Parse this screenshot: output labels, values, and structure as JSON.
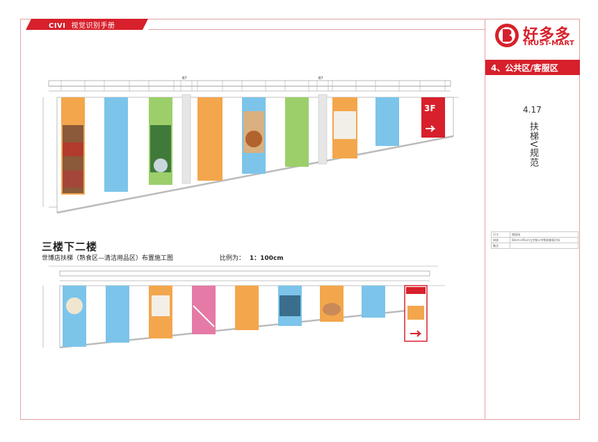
{
  "header": {
    "brand_mark": "CIVI",
    "manual_title": "视觉识别手册"
  },
  "logo": {
    "icon_letter": "B",
    "chinese_name": "好多多",
    "english_name": "TRUST-MART"
  },
  "section": {
    "label": "4、公共区/客服区",
    "page_number": "4.17",
    "vertical_title": "扶梯V规范"
  },
  "spec_table": {
    "rows": [
      {
        "key": "尺寸",
        "value": "视现场"
      },
      {
        "key": "材质",
        "value": "60cm×95cm立空贴+中等质感背灯布"
      },
      {
        "key": "备注",
        "value": ""
      }
    ]
  },
  "drawing_bottom": {
    "title": "三楼下二楼",
    "subtitle": "世博店扶梯（熟食区—清洁用品区）布置施工图",
    "scale_label": "比例为：",
    "scale_value": "1：100cm"
  },
  "drawing_top": {
    "dim_tags": [
      "B7",
      "B7"
    ],
    "sign_text": "3F"
  },
  "colors": {
    "accent_red": "#d7202b",
    "border_pink": "#e3a0a0",
    "panel_orange": "#f0a24a",
    "panel_blue": "#7cc4ea",
    "panel_green": "#9ccf6a"
  }
}
